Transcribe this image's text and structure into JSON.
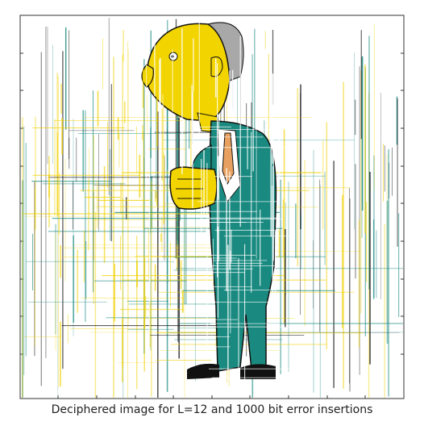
{
  "figure": {
    "caption": "Deciphered image for L=12 and 1000 bit error insertions"
  },
  "subject": {
    "description_icon": "cartoon-elderly-man-in-green-suit",
    "colors": {
      "skin": "#f2d400",
      "hair": "#a8a8a8",
      "suit": "#1a8a80",
      "shirt": "#ffffff",
      "outline": "#111111",
      "tie": "#e8a060"
    }
  },
  "noise": {
    "colors": {
      "teal": "#1a8a80",
      "yellow": "#f0d000",
      "black": "#111111"
    }
  },
  "frame": {
    "border_color": "#333333"
  }
}
